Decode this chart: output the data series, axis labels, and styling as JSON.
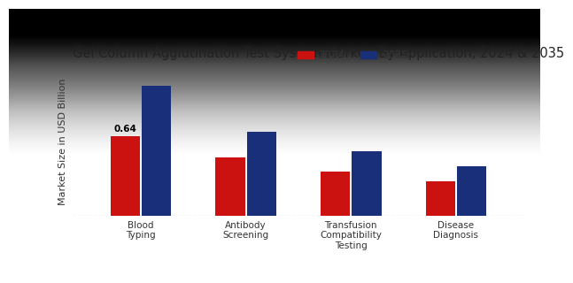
{
  "title": "Gel Column Agglutination Test System Market, By Application, 2024 & 2035",
  "ylabel": "Market Size in USD Billion",
  "categories": [
    "Blood\nTyping",
    "Antibody\nScreening",
    "Transfusion\nCompatibility\nTesting",
    "Disease\nDiagnosis"
  ],
  "values_2024": [
    0.64,
    0.47,
    0.36,
    0.28
  ],
  "values_2035": [
    1.05,
    0.68,
    0.52,
    0.4
  ],
  "color_2024": "#cc1111",
  "color_2035": "#1a2f7a",
  "label_2024": "2024",
  "label_2035": "2035",
  "bar_annotation": "0.64",
  "annotation_bar_index": 0,
  "background_top": "#d0d0d0",
  "background_bottom": "#f5f5f5",
  "ylim": [
    0,
    1.2
  ],
  "bar_width": 0.28,
  "title_fontsize": 10.5,
  "axis_label_fontsize": 8,
  "tick_fontsize": 7.5,
  "legend_fontsize": 8.5
}
